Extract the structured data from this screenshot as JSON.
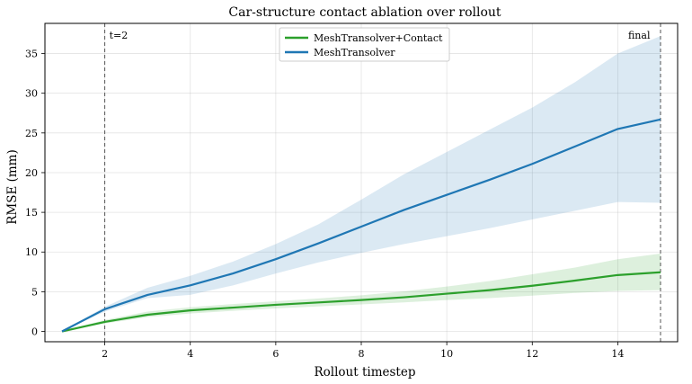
{
  "chart_data": {
    "type": "line",
    "title": "Car-structure contact ablation over rollout",
    "xlabel": "Rollout timestep",
    "ylabel": "RMSE (mm)",
    "xlim": [
      0.6,
      15.4
    ],
    "ylim": [
      -1.3,
      38.8
    ],
    "xticks": [
      2,
      4,
      6,
      8,
      10,
      12,
      14
    ],
    "yticks": [
      0,
      5,
      10,
      15,
      20,
      25,
      30,
      35
    ],
    "grid": true,
    "legend_position": "top-center",
    "x": [
      1,
      2,
      3,
      4,
      5,
      6,
      7,
      8,
      9,
      10,
      11,
      12,
      13,
      14,
      15
    ],
    "series": [
      {
        "name": "MeshTransolver+Contact",
        "color": "#2ca02c",
        "values": [
          0,
          1.2,
          2.1,
          2.65,
          3.0,
          3.35,
          3.65,
          3.95,
          4.3,
          4.75,
          5.2,
          5.75,
          6.4,
          7.1,
          7.45
        ],
        "band_lower": [
          0,
          1.0,
          1.8,
          2.25,
          2.6,
          2.9,
          3.15,
          3.4,
          3.65,
          3.95,
          4.2,
          4.5,
          4.85,
          5.1,
          5.2
        ],
        "band_upper": [
          0,
          1.45,
          2.5,
          3.05,
          3.45,
          3.8,
          4.15,
          4.55,
          5.05,
          5.65,
          6.35,
          7.2,
          8.05,
          9.1,
          9.8
        ]
      },
      {
        "name": "MeshTransolver",
        "color": "#1f77b4",
        "values": [
          0,
          2.8,
          4.6,
          5.8,
          7.3,
          9.1,
          11.1,
          13.2,
          15.3,
          17.2,
          19.1,
          21.1,
          23.3,
          25.5,
          26.7
        ],
        "band_lower": [
          0,
          2.5,
          4.2,
          4.6,
          5.8,
          7.3,
          8.7,
          9.9,
          11.0,
          12.0,
          13.0,
          14.1,
          15.2,
          16.3,
          16.2
        ],
        "band_upper": [
          0,
          3.1,
          5.5,
          7.0,
          8.8,
          11.0,
          13.5,
          16.6,
          19.8,
          22.6,
          25.4,
          28.2,
          31.4,
          35.0,
          37.2
        ]
      }
    ],
    "vlines": [
      {
        "x": 2,
        "label": "t=2"
      },
      {
        "x": 15,
        "label": "final"
      }
    ]
  }
}
